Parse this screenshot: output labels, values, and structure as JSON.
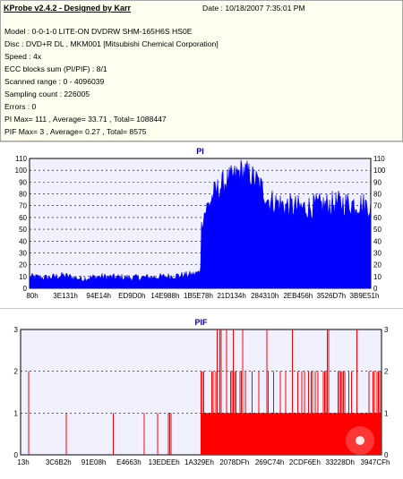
{
  "header": {
    "title": "KProbe v2.4.2 - Designed by Karr",
    "date": "Date : 10/18/2007 7:35:01 PM"
  },
  "info_lines": [
    "Model : 0-0-1-0 LITE-ON DVDRW SHM-165H6S HS0E",
    "Disc : DVD+R DL , MKM001 [Mitsubishi Chemical Corporation]",
    "Speed : 4x",
    "ECC blocks sum (PI/PIF) : 8/1",
    "Scanned range : 0 - 4096039",
    "Sampling count : 226005",
    "Errors : 0",
    "PI Max= 111 , Average= 33.71 , Total= 1088447",
    "PIF Max= 3 , Average= 0.27 , Total= 8575"
  ],
  "colors": {
    "pi": "#0000ff",
    "pif": "#ff0000",
    "plot_bg": "#f0f0ff",
    "grid": "#000000",
    "title": "#0000a0"
  },
  "chart_data": [
    {
      "type": "area",
      "title": "PI",
      "ylim": [
        0,
        110
      ],
      "yticks": [
        "0",
        "10",
        "20",
        "30",
        "40",
        "50",
        "60",
        "70",
        "80",
        "90",
        "100",
        "110"
      ],
      "xticks": [
        "80h",
        "3E131h",
        "94E14h",
        "ED9D0h",
        "14E988h",
        "1B5E78h",
        "21D134h",
        "284310h",
        "2EB456h",
        "3526D7h",
        "3B9E51h"
      ],
      "profile": [
        [
          0,
          10
        ],
        [
          0.05,
          9
        ],
        [
          0.1,
          11
        ],
        [
          0.15,
          8
        ],
        [
          0.2,
          10
        ],
        [
          0.3,
          9
        ],
        [
          0.4,
          10
        ],
        [
          0.48,
          12
        ],
        [
          0.5,
          14
        ],
        [
          0.505,
          60
        ],
        [
          0.52,
          68
        ],
        [
          0.54,
          80
        ],
        [
          0.57,
          90
        ],
        [
          0.6,
          95
        ],
        [
          0.62,
          100
        ],
        [
          0.64,
          98
        ],
        [
          0.67,
          90
        ],
        [
          0.7,
          75
        ],
        [
          0.75,
          70
        ],
        [
          0.8,
          68
        ],
        [
          0.85,
          70
        ],
        [
          0.9,
          72
        ],
        [
          0.95,
          72
        ],
        [
          1.0,
          70
        ]
      ]
    },
    {
      "type": "bar",
      "title": "PIF",
      "ylim": [
        0,
        3
      ],
      "yticks": [
        "0",
        "1",
        "2",
        "3"
      ],
      "xticks": [
        "13h",
        "3C6B2h",
        "91E08h",
        "E4663h",
        "13EDEEh",
        "1A329Eh",
        "2078DFh",
        "269C74h",
        "2CDF6Eh",
        "33228Dh",
        "3947CFh"
      ],
      "segments": [
        {
          "from": 0,
          "to": 0.5,
          "base": 0,
          "spike_rate": 0.04
        },
        {
          "from": 0.5,
          "to": 1.0,
          "base": 1,
          "spike_rate": 0.45
        }
      ]
    }
  ]
}
